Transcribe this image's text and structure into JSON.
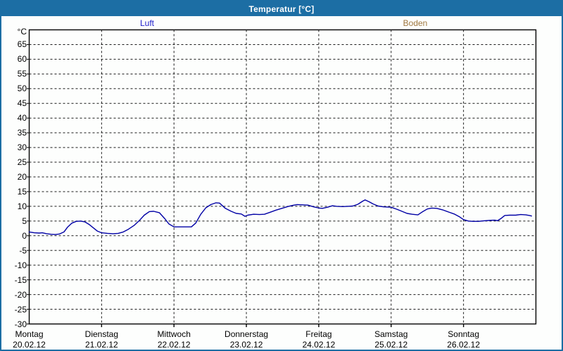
{
  "window": {
    "title": "Temperatur [°C]"
  },
  "legend": {
    "items": [
      {
        "label": "Luft",
        "color": "#2222CC"
      },
      {
        "label": "Boden",
        "color": "#A07840"
      }
    ]
  },
  "colors": {
    "window_accent": "#1C6EA4",
    "luft_line": "#0000A5",
    "grid": "#1a1a1a",
    "frame": "#000000"
  },
  "chart_data": {
    "type": "line",
    "title": "Temperatur [°C]",
    "y_unit_label": "°C",
    "ylabel": "Temperatur",
    "ylim": [
      -30,
      70
    ],
    "y_ticks": [
      65,
      60,
      55,
      50,
      45,
      40,
      35,
      30,
      25,
      20,
      15,
      10,
      5,
      0,
      -5,
      -10,
      -15,
      -20,
      -25,
      -30
    ],
    "grid": "dashed",
    "legend_position": "top",
    "x_days": [
      {
        "name": "Montag",
        "date": "20.02.12"
      },
      {
        "name": "Dienstag",
        "date": "21.02.12"
      },
      {
        "name": "Mittwoch",
        "date": "22.02.12"
      },
      {
        "name": "Donnerstag",
        "date": "23.02.12"
      },
      {
        "name": "Freitag",
        "date": "24.02.12"
      },
      {
        "name": "Samstag",
        "date": "25.02.12"
      },
      {
        "name": "Sonntag",
        "date": "26.02.12"
      }
    ],
    "x_unit": "days_from_20_02_12",
    "series": [
      {
        "name": "Luft",
        "color": "#0000A5",
        "points": [
          [
            0.0,
            1.3
          ],
          [
            0.07,
            1.0
          ],
          [
            0.14,
            0.9
          ],
          [
            0.18,
            1.0
          ],
          [
            0.24,
            0.7
          ],
          [
            0.3,
            0.5
          ],
          [
            0.36,
            0.4
          ],
          [
            0.42,
            0.6
          ],
          [
            0.48,
            1.3
          ],
          [
            0.53,
            2.9
          ],
          [
            0.59,
            4.3
          ],
          [
            0.65,
            4.9
          ],
          [
            0.71,
            5.0
          ],
          [
            0.77,
            4.7
          ],
          [
            0.83,
            3.8
          ],
          [
            0.88,
            2.8
          ],
          [
            0.94,
            1.6
          ],
          [
            1.0,
            1.0
          ],
          [
            1.08,
            0.8
          ],
          [
            1.16,
            0.7
          ],
          [
            1.23,
            0.8
          ],
          [
            1.3,
            1.3
          ],
          [
            1.37,
            2.2
          ],
          [
            1.45,
            3.5
          ],
          [
            1.53,
            5.4
          ],
          [
            1.59,
            7.0
          ],
          [
            1.66,
            8.2
          ],
          [
            1.72,
            8.3
          ],
          [
            1.8,
            7.8
          ],
          [
            1.87,
            5.9
          ],
          [
            1.93,
            4.0
          ],
          [
            2.0,
            3.0
          ],
          [
            2.08,
            3.0
          ],
          [
            2.16,
            3.0
          ],
          [
            2.24,
            3.0
          ],
          [
            2.3,
            4.3
          ],
          [
            2.37,
            7.3
          ],
          [
            2.44,
            9.5
          ],
          [
            2.51,
            10.6
          ],
          [
            2.58,
            11.2
          ],
          [
            2.63,
            11.1
          ],
          [
            2.71,
            9.3
          ],
          [
            2.79,
            8.3
          ],
          [
            2.86,
            7.6
          ],
          [
            2.93,
            7.4
          ],
          [
            2.98,
            6.6
          ],
          [
            3.02,
            7.0
          ],
          [
            3.1,
            7.3
          ],
          [
            3.18,
            7.2
          ],
          [
            3.25,
            7.3
          ],
          [
            3.33,
            8.0
          ],
          [
            3.41,
            8.7
          ],
          [
            3.49,
            9.3
          ],
          [
            3.57,
            9.9
          ],
          [
            3.64,
            10.3
          ],
          [
            3.7,
            10.6
          ],
          [
            3.78,
            10.5
          ],
          [
            3.85,
            10.4
          ],
          [
            3.93,
            9.8
          ],
          [
            4.01,
            9.4
          ],
          [
            4.05,
            9.3
          ],
          [
            4.12,
            9.7
          ],
          [
            4.19,
            10.2
          ],
          [
            4.25,
            10.0
          ],
          [
            4.33,
            9.9
          ],
          [
            4.4,
            10.0
          ],
          [
            4.47,
            10.1
          ],
          [
            4.54,
            10.7
          ],
          [
            4.61,
            11.8
          ],
          [
            4.64,
            12.2
          ],
          [
            4.7,
            11.5
          ],
          [
            4.75,
            10.8
          ],
          [
            4.82,
            10.1
          ],
          [
            4.9,
            9.8
          ],
          [
            5.0,
            9.7
          ],
          [
            5.08,
            9.0
          ],
          [
            5.14,
            8.4
          ],
          [
            5.22,
            7.6
          ],
          [
            5.29,
            7.3
          ],
          [
            5.37,
            7.1
          ],
          [
            5.43,
            8.1
          ],
          [
            5.5,
            9.1
          ],
          [
            5.56,
            9.4
          ],
          [
            5.63,
            9.3
          ],
          [
            5.71,
            8.8
          ],
          [
            5.79,
            8.1
          ],
          [
            5.87,
            7.4
          ],
          [
            5.94,
            6.5
          ],
          [
            6.0,
            5.5
          ],
          [
            6.07,
            5.0
          ],
          [
            6.13,
            4.9
          ],
          [
            6.21,
            4.9
          ],
          [
            6.29,
            5.1
          ],
          [
            6.36,
            5.2
          ],
          [
            6.43,
            5.3
          ],
          [
            6.47,
            5.1
          ],
          [
            6.52,
            5.9
          ],
          [
            6.57,
            6.9
          ],
          [
            6.64,
            7.0
          ],
          [
            6.72,
            7.0
          ],
          [
            6.79,
            7.2
          ],
          [
            6.86,
            7.1
          ],
          [
            6.91,
            6.9
          ],
          [
            6.94,
            6.7
          ]
        ]
      },
      {
        "name": "Boden",
        "color": "#A07840",
        "points": []
      }
    ]
  }
}
